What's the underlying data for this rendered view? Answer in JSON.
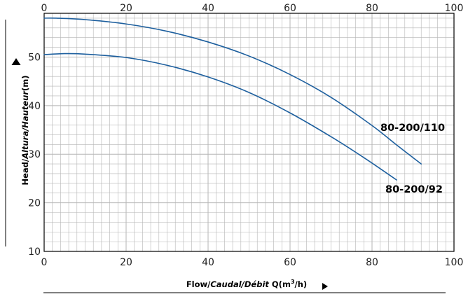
{
  "chart_data": {
    "type": "line",
    "xlabel": {
      "prefix": "Flow/",
      "italic": "Caudal/Débit",
      "suffix": " Q(m",
      "sup": "3",
      "end": "/h)"
    },
    "ylabel": {
      "prefix": "Head/",
      "italic": "Altura/Hauteur",
      "suffix": "(m)"
    },
    "xlim": [
      0,
      100
    ],
    "ylim": [
      10,
      59
    ],
    "x_ticks": [
      0,
      20,
      40,
      60,
      80,
      100
    ],
    "y_ticks": [
      10,
      20,
      30,
      40,
      50
    ],
    "grid": true,
    "minor_grid_x": 2,
    "minor_grid_y": 2,
    "series": [
      {
        "name": "80-200/110",
        "x": [
          0,
          3,
          10,
          20,
          30,
          40,
          50,
          60,
          70,
          80,
          86,
          92
        ],
        "y": [
          58.0,
          58.0,
          57.7,
          56.8,
          55.3,
          53.1,
          50.2,
          46.4,
          41.7,
          35.9,
          31.9,
          28.0
        ]
      },
      {
        "name": "80-200/92",
        "x": [
          0,
          5,
          10,
          20,
          30,
          40,
          50,
          60,
          70,
          78,
          86
        ],
        "y": [
          50.5,
          50.7,
          50.6,
          49.9,
          48.3,
          45.9,
          42.7,
          38.5,
          33.6,
          29.3,
          24.7
        ]
      }
    ],
    "colors": {
      "line": "#1d5f9e",
      "grid": "#b5b5b5",
      "axis": "#000000"
    }
  }
}
